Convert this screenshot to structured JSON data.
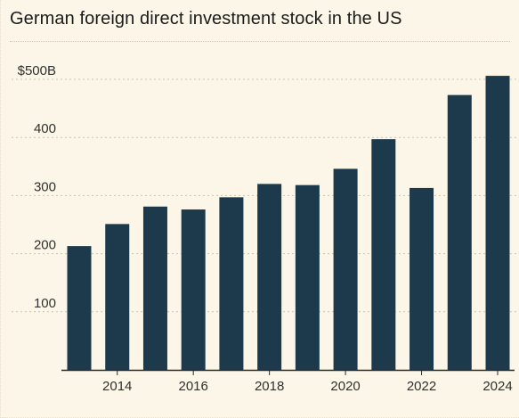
{
  "chart_data": {
    "type": "bar",
    "title": "German foreign direct investment stock in the US",
    "xlabel": "",
    "ylabel": "",
    "categories": [
      "2013",
      "2014",
      "2015",
      "2016",
      "2017",
      "2018",
      "2019",
      "2020",
      "2021",
      "2022",
      "2023",
      "2024"
    ],
    "series": [
      {
        "values": [
          213,
          251,
          281,
          276,
          297,
          320,
          318,
          346,
          397,
          313,
          473,
          506
        ]
      }
    ],
    "ylim": [
      0,
      500
    ],
    "yticks": [
      100,
      200,
      300,
      400,
      500
    ],
    "ytick_labels": [
      "100",
      "200",
      "300",
      "400",
      "$500B"
    ],
    "xtick_labels": [
      "2014",
      "2016",
      "2018",
      "2020",
      "2022",
      "2024"
    ],
    "grid": "horizontal dotted",
    "colors": {
      "background": "#fbf6e7",
      "bar": "#1c3a4c",
      "grid": "#c9c2b2",
      "axis": "#2a2a2a"
    }
  }
}
